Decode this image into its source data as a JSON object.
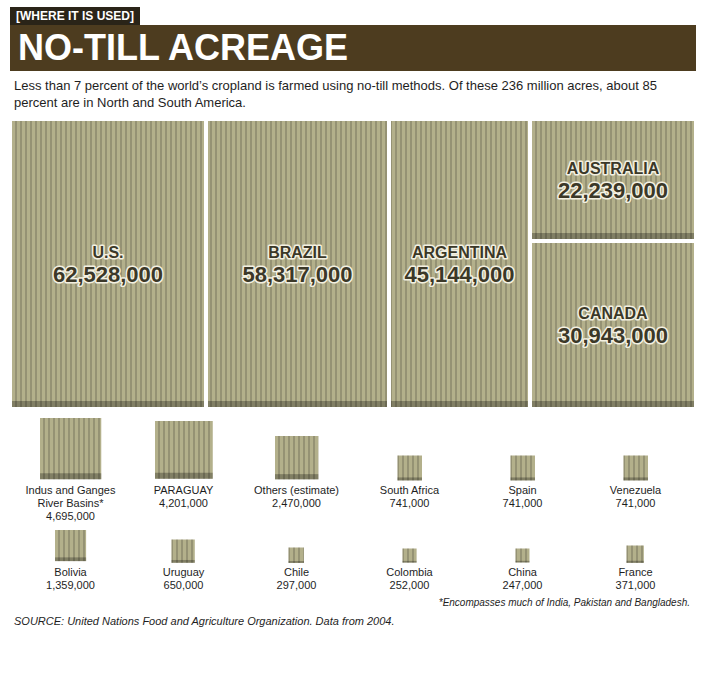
{
  "chart_data": {
    "type": "treemap",
    "header": "[WHERE IT IS USED]",
    "title": "NO-TILL ACREAGE",
    "subtitle": "Less than 7 percent of the world’s cropland is farmed using no-till methods. Of these 236 million acres, about 85 percent are in North and South America.",
    "categories": [
      "U.S.",
      "BRAZIL",
      "ARGENTINA",
      "AUSTRALIA",
      "CANADA",
      "Indus and Ganges River Basins*",
      "PARAGUAY",
      "Others (estimate)",
      "South Africa",
      "Spain",
      "Venezuela",
      "Bolivia",
      "Uruguay",
      "Chile",
      "Colombia",
      "China",
      "France"
    ],
    "values": [
      62528000,
      58317000,
      45144000,
      22239000,
      30943000,
      4695000,
      4201000,
      2470000,
      741000,
      741000,
      741000,
      1359000,
      650000,
      297000,
      252000,
      247000,
      371000
    ],
    "value_labels": [
      "62,528,000",
      "58,317,000",
      "45,144,000",
      "22,239,000",
      "30,943,000",
      "4,695,000",
      "4,201,000",
      "2,470,000",
      "741,000",
      "741,000",
      "741,000",
      "1,359,000",
      "650,000",
      "297,000",
      "252,000",
      "247,000",
      "371,000"
    ],
    "color": "#b3b08b",
    "data_labels": true,
    "footnote": "*Encompasses much of India, Pakistan and Bangladesh.",
    "source": "SOURCE: United Nations Food and Agriculture Organization. Data from 2004."
  }
}
